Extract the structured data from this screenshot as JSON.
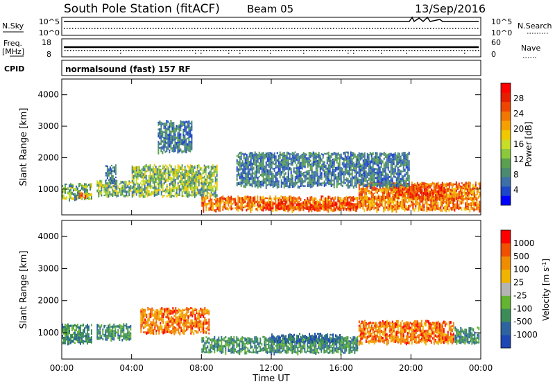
{
  "header": {
    "title": "South Pole Station (fitACF)",
    "beam": "Beam 05",
    "date": "13/Sep/2016"
  },
  "params": {
    "nsky_label": "N.Sky",
    "nsky_ticks": [
      "10^5",
      "10^0"
    ],
    "nsearch_label": "N.Search",
    "nsearch_ticks": [
      "10^5",
      "10^0"
    ],
    "freq_label": "Freq.",
    "freq_unit": "[MHz]",
    "freq_ticks": [
      "18",
      "8"
    ],
    "nave_label": "Nave",
    "nave_ticks": [
      "60",
      "0"
    ],
    "cpid_label": "CPID",
    "cpid_value": "normalsound (fast) 157 RF"
  },
  "chart_data": [
    {
      "type": "heatmap",
      "name": "power",
      "ylabel": "Slant Range [km]",
      "xlabel": "",
      "xlim": [
        0,
        24
      ],
      "ylim": [
        180,
        4500
      ],
      "y_ticks": [
        "1000",
        "2000",
        "3000",
        "4000"
      ],
      "colorbar": {
        "label": "Power [dB]",
        "range": [
          0,
          32
        ],
        "ticks": [
          "4",
          "8",
          "12",
          "16",
          "20",
          "24",
          "28"
        ],
        "colors": [
          "#0000ff",
          "#1e46c8",
          "#3d6fa8",
          "#4a8a70",
          "#5aa050",
          "#8cc83c",
          "#c8dc28",
          "#f0c800",
          "#f5a000",
          "#f07800",
          "#ee4600",
          "#e61e00",
          "#ff0000"
        ]
      },
      "regions": [
        {
          "t0": 0.0,
          "t1": 1.8,
          "r0": 700,
          "r1": 1200,
          "level": "mid"
        },
        {
          "t0": 1.0,
          "t1": 1.5,
          "r0": 750,
          "r1": 950,
          "level": "high"
        },
        {
          "t0": 2.0,
          "t1": 4.0,
          "r0": 800,
          "r1": 1300,
          "level": "mid"
        },
        {
          "t0": 2.5,
          "t1": 3.2,
          "r0": 1200,
          "r1": 1800,
          "level": "low"
        },
        {
          "t0": 4.0,
          "t1": 9.0,
          "r0": 800,
          "r1": 1800,
          "level": "mid"
        },
        {
          "t0": 5.5,
          "t1": 7.5,
          "r0": 2200,
          "r1": 3200,
          "level": "low"
        },
        {
          "t0": 8.0,
          "t1": 24.0,
          "r0": 350,
          "r1": 800,
          "level": "high"
        },
        {
          "t0": 11.5,
          "t1": 17.0,
          "r0": 380,
          "r1": 620,
          "level": "peak"
        },
        {
          "t0": 17.0,
          "t1": 24.0,
          "r0": 700,
          "r1": 1250,
          "level": "high"
        },
        {
          "t0": 19.0,
          "t1": 22.0,
          "r0": 800,
          "r1": 1150,
          "level": "peak"
        },
        {
          "t0": 10.0,
          "t1": 20.0,
          "r0": 1100,
          "r1": 2200,
          "level": "low"
        }
      ]
    },
    {
      "type": "heatmap",
      "name": "velocity",
      "ylabel": "Slant Range [km]",
      "xlabel": "Time UT",
      "xlim": [
        0,
        24
      ],
      "ylim": [
        180,
        4500
      ],
      "x_ticks": [
        "00:00",
        "04:00",
        "08:00",
        "12:00",
        "16:00",
        "20:00",
        "00:00"
      ],
      "y_ticks": [
        "1000",
        "2000",
        "3000",
        "4000"
      ],
      "colorbar": {
        "label": "Velocity [m s",
        "label_sup": "-1",
        "label_end": "]",
        "ticks": [
          "1000",
          "500",
          "100",
          "25",
          "-25",
          "-100",
          "-500",
          "-1000"
        ],
        "colors": [
          "#1e46b4",
          "#2d64a0",
          "#3c8c5a",
          "#64b432",
          "#b4b4b4",
          "#f0b400",
          "#f08c00",
          "#f05000",
          "#ff0000"
        ]
      },
      "regions": [
        {
          "t0": 0.0,
          "t1": 1.8,
          "r0": 700,
          "r1": 1300,
          "level": "green"
        },
        {
          "t0": 2.0,
          "t1": 4.0,
          "r0": 800,
          "r1": 1300,
          "level": "green"
        },
        {
          "t0": 4.5,
          "t1": 8.5,
          "r0": 1000,
          "r1": 1800,
          "level": "orange"
        },
        {
          "t0": 8.0,
          "t1": 17.0,
          "r0": 400,
          "r1": 900,
          "level": "green"
        },
        {
          "t0": 12.0,
          "t1": 16.0,
          "r0": 700,
          "r1": 1000,
          "level": "blue"
        },
        {
          "t0": 17.0,
          "t1": 22.5,
          "r0": 700,
          "r1": 1400,
          "level": "orange"
        },
        {
          "t0": 22.5,
          "t1": 24.0,
          "r0": 700,
          "r1": 1200,
          "level": "green"
        }
      ]
    }
  ]
}
